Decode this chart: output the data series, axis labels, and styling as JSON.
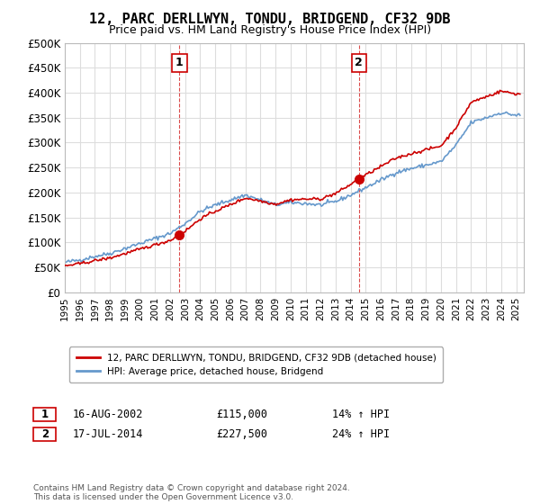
{
  "title": "12, PARC DERLLWYN, TONDU, BRIDGEND, CF32 9DB",
  "subtitle": "Price paid vs. HM Land Registry's House Price Index (HPI)",
  "ylabel_ticks": [
    "£0",
    "£50K",
    "£100K",
    "£150K",
    "£200K",
    "£250K",
    "£300K",
    "£350K",
    "£400K",
    "£450K",
    "£500K"
  ],
  "ytick_values": [
    0,
    50000,
    100000,
    150000,
    200000,
    250000,
    300000,
    350000,
    400000,
    450000,
    500000
  ],
  "ylim": [
    0,
    500000
  ],
  "xlim_start": 1995.0,
  "xlim_end": 2025.5,
  "sale1": {
    "date": 2002.62,
    "price": 115000,
    "label": "1",
    "hpi_pct": "14%",
    "date_str": "16-AUG-2002"
  },
  "sale2": {
    "date": 2014.54,
    "price": 227500,
    "label": "2",
    "hpi_pct": "24%",
    "date_str": "17-JUL-2014"
  },
  "legend_property": "12, PARC DERLLWYN, TONDU, BRIDGEND, CF32 9DB (detached house)",
  "legend_hpi": "HPI: Average price, detached house, Bridgend",
  "property_color": "#cc0000",
  "hpi_color": "#6699cc",
  "vline_color": "#cc0000",
  "footer": "Contains HM Land Registry data © Crown copyright and database right 2024.\nThis data is licensed under the Open Government Licence v3.0.",
  "background_color": "#ffffff",
  "grid_color": "#dddddd"
}
